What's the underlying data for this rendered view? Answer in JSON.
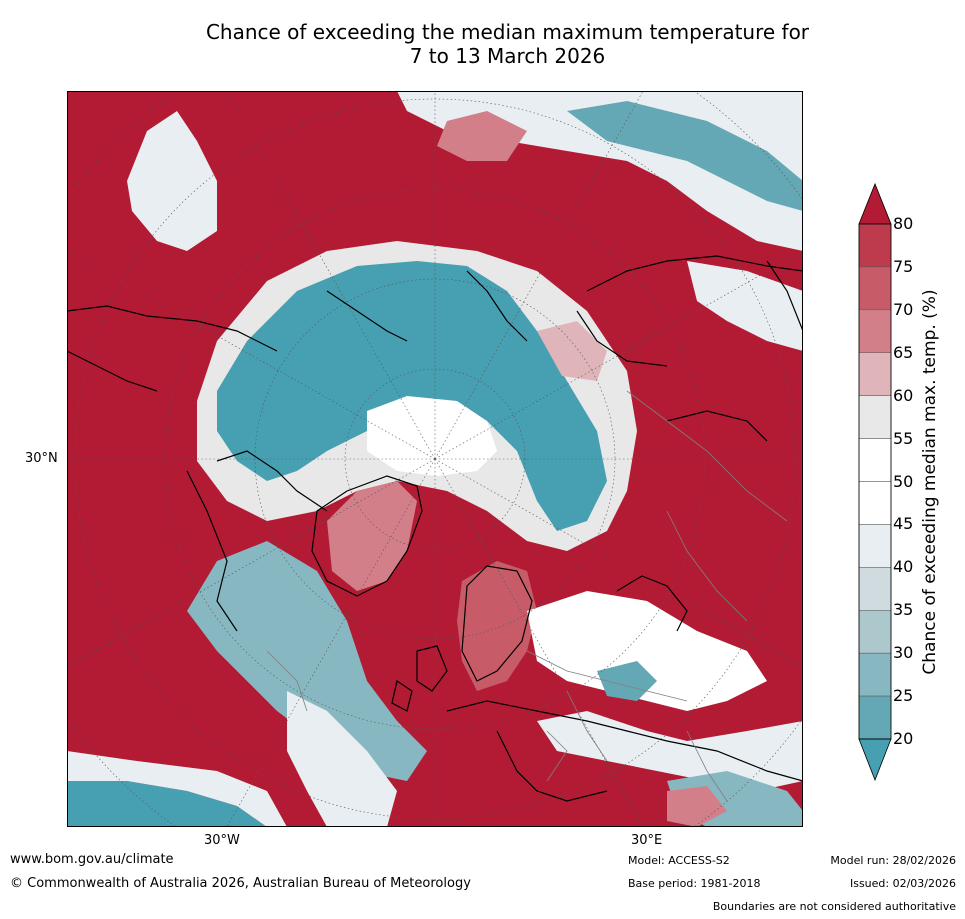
{
  "title": {
    "line1": "Chance of exceeding the median maximum temperature for",
    "line2": "7 to 13 March 2026"
  },
  "axis_labels": {
    "lat": "30°N",
    "lon_west": "30°W",
    "lon_east": "30°E"
  },
  "colorbar": {
    "label": "Chance of exceeding median max. temp. (%)",
    "ticks": [
      "80",
      "75",
      "70",
      "65",
      "60",
      "55",
      "50",
      "45",
      "40",
      "35",
      "30",
      "25",
      "20"
    ],
    "colors": [
      "#b31b34",
      "#bd3b4d",
      "#c85b68",
      "#d37f89",
      "#e0b5ba",
      "#e8e8e8",
      "#ffffff",
      "#ffffff",
      "#e8eef1",
      "#cfdbde",
      "#acc8cc",
      "#87b8c1",
      "#65a8b5",
      "#46a0b2"
    ]
  },
  "footer": {
    "website": "www.bom.gov.au/climate",
    "copyright": "© Commonwealth of Australia 2026, Australian Bureau of Meteorology",
    "model": "Model: ACCESS-S2",
    "base_period": "Base period: 1981-2018",
    "model_run": "Model run: 28/02/2026",
    "issued": "Issued: 02/03/2026",
    "disclaimer": "Boundaries are not considered authoritative"
  }
}
